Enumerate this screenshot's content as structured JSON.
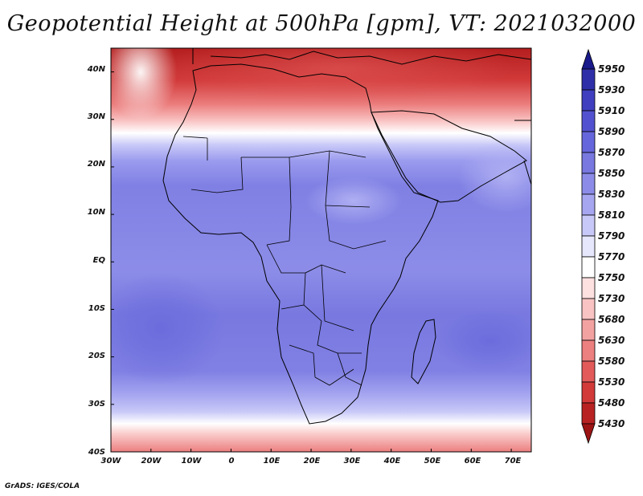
{
  "title": "Geopotential Height at 500hPa [gpm], VT: 2021032000",
  "credit": "GrADS: IGES/COLA",
  "map": {
    "variable": "Geopotential Height at 500hPa",
    "units": "gpm",
    "valid_time": "2021032000",
    "lon_range": [
      -30,
      75
    ],
    "lat_range": [
      -40,
      45
    ],
    "lon_ticks": [
      "30W",
      "20W",
      "10W",
      "0",
      "10E",
      "20E",
      "30E",
      "40E",
      "50E",
      "60E",
      "70E"
    ],
    "lat_ticks": [
      "40N",
      "30N",
      "20N",
      "10N",
      "EQ",
      "10S",
      "20S",
      "30S",
      "40S"
    ]
  },
  "colorbar": {
    "levels": [
      "5950",
      "5930",
      "5910",
      "5890",
      "5870",
      "5850",
      "5830",
      "5810",
      "5790",
      "5770",
      "5750",
      "5730",
      "5680",
      "5630",
      "5580",
      "5530",
      "5480",
      "5430"
    ],
    "colors": [
      "#1a1a8c",
      "#2e2ea8",
      "#3f3fbf",
      "#5252d0",
      "#6666dc",
      "#7878e0",
      "#8c8ce8",
      "#a6a6f0",
      "#c8c8f8",
      "#e6e6fc",
      "#ffffff",
      "#fde0e0",
      "#f9c3c3",
      "#f3a2a2",
      "#ec7f7f",
      "#e25a5a",
      "#d23a3a",
      "#b82222",
      "#9c1414"
    ]
  }
}
